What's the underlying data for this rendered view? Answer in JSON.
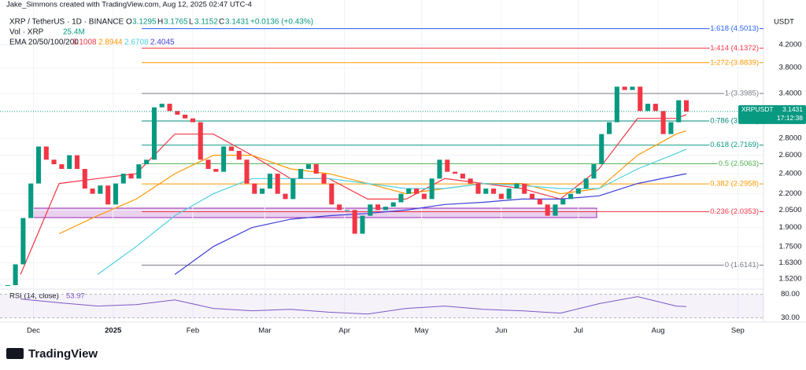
{
  "header": {
    "credit": "Jake_Simmons created with TradingView.com, Aug 12, 2025 02:47 UTC-4"
  },
  "legend": {
    "symbol": "XRP / TetherUS · 1D · BINANCE",
    "o_label": "O",
    "open": 3.1295,
    "h_label": "H",
    "high": 3.1765,
    "l_label": "L",
    "low": 3.1152,
    "c_label": "C",
    "close": 3.1431,
    "change": "+0.0136 (+0.43%)",
    "volume_label": "Vol · XRP",
    "volume_value": "25.4M"
  },
  "chart_data": [
    {
      "type": "candlestick",
      "y_axis_title": "USDT",
      "log_scale": true,
      "up_color": "#089981",
      "down_color": "#f23645",
      "x": [
        -10,
        -7,
        -4,
        -1,
        2,
        5,
        8,
        11,
        14,
        17,
        20,
        23,
        26,
        29,
        32,
        35,
        38,
        41,
        44,
        47,
        50,
        53,
        56,
        59,
        62,
        65,
        68,
        71,
        74,
        77,
        80,
        83,
        86,
        89,
        92,
        95,
        98,
        101,
        104,
        107,
        110,
        113,
        116,
        119,
        122,
        125,
        128,
        131,
        134,
        137,
        140,
        143,
        146,
        149,
        152,
        155,
        158,
        161,
        164,
        167,
        170,
        173,
        176,
        179,
        182,
        185,
        188,
        191,
        194,
        197,
        200,
        203,
        206,
        209,
        212,
        215,
        218,
        221,
        224,
        227,
        230,
        233,
        236,
        239,
        242,
        245,
        248,
        251,
        254
      ],
      "close": [
        1.48,
        1.62,
        1.98,
        2.3,
        2.7,
        2.55,
        2.5,
        2.45,
        2.6,
        2.45,
        2.25,
        2.2,
        2.28,
        2.1,
        2.3,
        2.4,
        2.35,
        2.5,
        2.55,
        3.2,
        3.25,
        3.15,
        3.1,
        3.05,
        3.0,
        2.55,
        2.45,
        2.42,
        2.7,
        2.65,
        2.55,
        2.3,
        2.2,
        2.25,
        2.4,
        2.2,
        2.15,
        2.35,
        2.45,
        2.5,
        2.4,
        2.3,
        2.1,
        2.05,
        2.05,
        1.85,
        2.0,
        2.1,
        2.05,
        2.08,
        2.12,
        2.2,
        2.25,
        2.2,
        2.15,
        2.35,
        2.55,
        2.42,
        2.4,
        2.35,
        2.3,
        2.2,
        2.25,
        2.2,
        2.15,
        2.25,
        2.3,
        2.2,
        2.15,
        2.1,
        2.0,
        2.1,
        2.15,
        2.2,
        2.25,
        2.35,
        2.5,
        2.85,
        3.0,
        3.5,
        3.45,
        3.5,
        3.15,
        3.25,
        3.15,
        2.85,
        3.0,
        3.3,
        3.14
      ],
      "ema_label": "EMA 20/50/100/200",
      "ema_x": [
        -5,
        10,
        25,
        40,
        55,
        70,
        85,
        100,
        115,
        130,
        145,
        160,
        175,
        190,
        205,
        220,
        235,
        250,
        254
      ],
      "ema_series": [
        {
          "color": "#f23645",
          "last": 3.1008,
          "values": [
            1.55,
            2.3,
            2.35,
            2.4,
            2.85,
            2.85,
            2.6,
            2.35,
            2.35,
            2.15,
            2.15,
            2.35,
            2.3,
            2.25,
            2.15,
            2.45,
            3.05,
            3.05,
            3.1
          ]
        },
        {
          "color": "#ff9800",
          "last": 2.8944,
          "values": [
            null,
            1.85,
            2.0,
            2.15,
            2.4,
            2.6,
            2.6,
            2.45,
            2.4,
            2.3,
            2.2,
            2.25,
            2.3,
            2.3,
            2.2,
            2.25,
            2.6,
            2.85,
            2.89
          ]
        },
        {
          "color": "#4dd0e1",
          "last": 2.6708,
          "values": [
            null,
            null,
            1.55,
            1.75,
            2.0,
            2.2,
            2.35,
            2.35,
            2.35,
            2.3,
            2.25,
            2.25,
            2.3,
            2.28,
            2.25,
            2.25,
            2.45,
            2.62,
            2.67
          ]
        },
        {
          "color": "#3f3fd9",
          "last": 2.4045,
          "values": [
            null,
            null,
            null,
            null,
            1.55,
            1.75,
            1.9,
            1.97,
            2.0,
            2.02,
            2.05,
            2.1,
            2.12,
            2.15,
            2.15,
            2.18,
            2.3,
            2.38,
            2.4
          ]
        }
      ],
      "xlim": [
        -13,
        284
      ],
      "xticks": [
        {
          "value": 0,
          "label": "Dec"
        },
        {
          "value": 31,
          "label": "2025"
        },
        {
          "value": 62,
          "label": "Feb"
        },
        {
          "value": 90,
          "label": "Mar"
        },
        {
          "value": 121,
          "label": "Apr"
        },
        {
          "value": 151,
          "label": "May"
        },
        {
          "value": 182,
          "label": "Jun"
        },
        {
          "value": 212,
          "label": "Jul"
        },
        {
          "value": 243,
          "label": "Aug"
        },
        {
          "value": 274,
          "label": "Sep"
        }
      ],
      "ylim": [
        1.47,
        4.96
      ],
      "yticks": [
        {
          "value": 4.2,
          "label": "4.2000"
        },
        {
          "value": 3.8,
          "label": "3.8000"
        },
        {
          "value": 3.4,
          "label": "3.4000"
        },
        {
          "value": 2.8,
          "label": "2.8000"
        },
        {
          "value": 2.6,
          "label": "2.6000"
        },
        {
          "value": 2.4,
          "label": "2.4000"
        },
        {
          "value": 2.2,
          "label": "2.2000"
        },
        {
          "value": 2.05,
          "label": "2.0500"
        },
        {
          "value": 1.9,
          "label": "1.9000"
        },
        {
          "value": 1.75,
          "label": "1.7500"
        },
        {
          "value": 1.63,
          "label": "1.6300"
        },
        {
          "value": 1.52,
          "label": "1.5200"
        }
      ],
      "fib_levels": [
        {
          "label": "1.618 (4.5013)",
          "value": 4.5013,
          "color": "#2962ff"
        },
        {
          "label": "1.414 (4.1372)",
          "value": 4.1372,
          "color": "#f23645"
        },
        {
          "label": "1.272 (3.8839)",
          "value": 3.8839,
          "color": "#ff9800"
        },
        {
          "label": "1 (3.3985)",
          "value": 3.3985,
          "color": "#787b86"
        },
        {
          "label": "0.786 (3.0167)",
          "value": 3.0167,
          "color": "#00897b"
        },
        {
          "label": "0.618 (2.7169)",
          "value": 2.7169,
          "color": "#089981"
        },
        {
          "label": "0.5 (2.5063)",
          "value": 2.5063,
          "color": "#4caf50"
        },
        {
          "label": "0.382 (2.2958)",
          "value": 2.2958,
          "color": "#ff9800"
        },
        {
          "label": "0.236 (2.0353)",
          "value": 2.0353,
          "color": "#f23645"
        },
        {
          "label": "0 (1.6141)",
          "value": 1.6141,
          "color": "#787b86"
        }
      ],
      "price_tag": {
        "symbol": "XRPUSDT",
        "price": 3.1431,
        "countdown": "17:12:38"
      }
    },
    {
      "type": "line",
      "title": "RSI (14, close)",
      "last_value": 53.97,
      "color": "#7e57c2",
      "x": [
        -5,
        10,
        25,
        40,
        55,
        70,
        85,
        100,
        115,
        130,
        145,
        160,
        175,
        190,
        205,
        220,
        235,
        250,
        254
      ],
      "values": [
        70,
        62,
        55,
        58,
        68,
        50,
        45,
        48,
        42,
        38,
        50,
        55,
        48,
        45,
        40,
        60,
        75,
        55,
        53.97
      ],
      "ylim": [
        21,
        91
      ],
      "yticks": [
        {
          "value": 80,
          "label": "80.00"
        },
        {
          "value": 30,
          "label": "30.00"
        }
      ]
    }
  ],
  "brand": "TradingView"
}
